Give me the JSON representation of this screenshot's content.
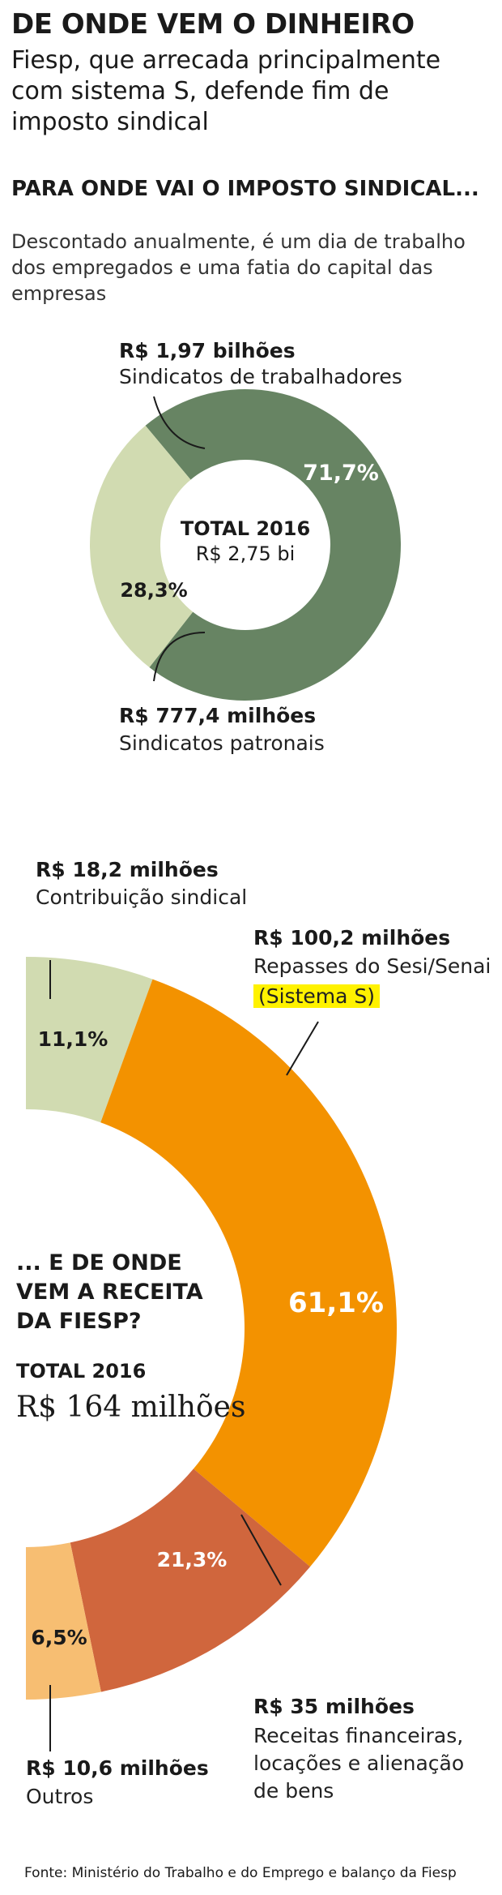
{
  "header": {
    "title": "DE ONDE VEM O DINHEIRO",
    "deck": "Fiesp, que arrecada principalmente com sistema S, defende fim de imposto sindical"
  },
  "section1": {
    "title": "PARA ONDE VAI O IMPOSTO SINDICAL...",
    "intro": "Descontado anualmente, é um dia de trabalho dos empregados e uma fatia do capital das empresas",
    "total_label": "TOTAL 2016",
    "total_value": "R$ 2,75 bi",
    "slices": [
      {
        "value_label": "R$ 1,97 bilhões",
        "desc": "Sindicatos de trabalhadores",
        "pct_label": "71,7%"
      },
      {
        "value_label": "R$ 777,4 milhões",
        "desc": "Sindicatos patronais",
        "pct_label": "28,3%"
      }
    ]
  },
  "section2": {
    "title_lines": [
      "... E DE ONDE",
      "VEM A RECEITA",
      "DA FIESP?"
    ],
    "total_label": "TOTAL 2016",
    "total_value": "R$ 164 milhões",
    "slices": [
      {
        "value_label": "R$ 18,2 milhões",
        "desc_lines": [
          "Contribuição sindical"
        ],
        "pct_label": "11,1%"
      },
      {
        "value_label": "R$ 100,2 milhões",
        "desc_lines": [
          "Repasses do Sesi/Senai"
        ],
        "highlight": "(Sistema S)",
        "pct_label": "61,1%"
      },
      {
        "value_label": "R$ 35 milhões",
        "desc_lines": [
          "Receitas financeiras,",
          "locações e alienação",
          "de bens"
        ],
        "pct_label": "21,3%"
      },
      {
        "value_label": "R$ 10,6 milhões",
        "desc_lines": [
          "Outros"
        ],
        "pct_label": "6,5%"
      }
    ]
  },
  "source": "Fonte: Ministério do Trabalho e do Emprego e balanço da Fiesp",
  "colors": {
    "trabalhadores": "#678463",
    "patronais": "#d1dbb1",
    "contribuicao": "#d1dbb1",
    "sesi_senai": "#f39200",
    "financeiras": "#d0663d",
    "outros": "#f7be72",
    "highlight": "#fff200"
  },
  "chart_data": [
    {
      "type": "pie",
      "subtype": "donut",
      "title": "PARA ONDE VAI O IMPOSTO SINDICAL...",
      "total": "R$ 2,75 bi",
      "categories": [
        "Sindicatos de trabalhadores",
        "Sindicatos patronais"
      ],
      "values": [
        71.7,
        28.3
      ],
      "amounts": [
        "R$ 1,97 bilhões",
        "R$ 777,4 milhões"
      ]
    },
    {
      "type": "pie",
      "subtype": "half-donut",
      "title": "... E DE ONDE VEM A RECEITA DA FIESP?",
      "total": "R$ 164 milhões",
      "categories": [
        "Contribuição sindical",
        "Repasses do Sesi/Senai (Sistema S)",
        "Receitas financeiras, locações e alienação de bens",
        "Outros"
      ],
      "values": [
        11.1,
        61.1,
        21.3,
        6.5
      ],
      "amounts": [
        "R$ 18,2 milhões",
        "R$ 100,2 milhões",
        "R$ 35 milhões",
        "R$ 10,6 milhões"
      ]
    }
  ]
}
